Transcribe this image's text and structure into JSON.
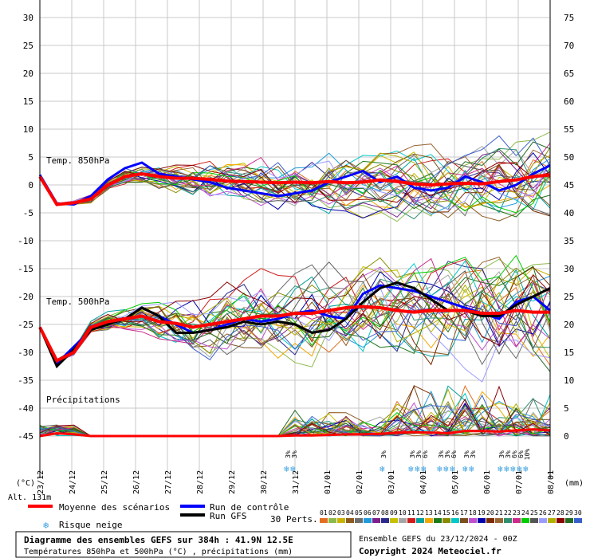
{
  "chart_data": {
    "type": "line",
    "left_axis": {
      "unit": "(°C)",
      "ylim": [
        -45,
        30
      ],
      "ticks": [
        30,
        25,
        20,
        15,
        10,
        5,
        0,
        -5,
        -10,
        -15,
        -20,
        -25,
        -30,
        -35,
        -40,
        -45
      ]
    },
    "right_axis": {
      "unit": "(mm)",
      "ylim": [
        0,
        75
      ],
      "ticks": [
        75,
        70,
        65,
        60,
        55,
        50,
        45,
        40,
        35,
        30,
        25,
        20,
        15,
        10,
        5,
        0
      ]
    },
    "x_dates": [
      "23/12",
      "24/12",
      "25/12",
      "26/12",
      "27/12",
      "28/12",
      "29/12",
      "30/12",
      "31/12",
      "01/01",
      "02/01",
      "03/01",
      "04/01",
      "05/01",
      "06/01",
      "07/01",
      "08/01"
    ],
    "x_range_hours": [
      0,
      384
    ],
    "grid": true,
    "panels": {
      "t850_label": "Temp. 850hPa",
      "t500_label": "Temp. 500hPa",
      "precip_label": "Précipitations"
    },
    "t850_mean": [
      1.5,
      -3.5,
      -3.2,
      -2.5,
      0,
      1.5,
      2.0,
      1.5,
      1.2,
      1.2,
      1.0,
      0.7,
      0.6,
      0.5,
      0.4,
      0.5,
      0.4,
      0.6,
      0.4,
      0.5,
      0.9,
      0.6,
      0.2,
      0.0,
      0.2,
      0.3,
      0.2,
      0.6,
      0.9,
      1.5,
      1.8
    ],
    "t850_control": [
      1.8,
      -3.3,
      -3.5,
      -2.0,
      1.0,
      3.0,
      4.0,
      2.0,
      1.5,
      1.0,
      0.5,
      -0.5,
      -1.0,
      -1.5,
      -2.0,
      -1.5,
      -1.0,
      0.5,
      1.5,
      2.5,
      0.5,
      1.5,
      -0.5,
      -1.0,
      -0.5,
      1.5,
      0.5,
      -1.0,
      0.0,
      2.0,
      3.5
    ],
    "t500_mean": [
      -25.5,
      -31.5,
      -30.0,
      -25.5,
      -24.5,
      -24.0,
      -23.5,
      -24.5,
      -24.8,
      -25.5,
      -25.0,
      -24.5,
      -24.0,
      -23.5,
      -23.5,
      -23.0,
      -23.0,
      -22.5,
      -22.0,
      -21.8,
      -22.0,
      -22.5,
      -22.8,
      -22.5,
      -22.5,
      -22.5,
      -23.0,
      -23.0,
      -22.5,
      -22.8,
      -22.8
    ],
    "t500_control": [
      -25.5,
      -32.0,
      -29.0,
      -26.0,
      -24.5,
      -24.0,
      -22.0,
      -23.5,
      -25.0,
      -26.5,
      -26.0,
      -25.0,
      -24.0,
      -24.5,
      -24.0,
      -23.0,
      -22.5,
      -23.5,
      -24.0,
      -19.5,
      -18.0,
      -18.5,
      -19.0,
      -20.0,
      -21.0,
      -22.0,
      -23.0,
      -24.0,
      -21.0,
      -20.0,
      -22.5
    ],
    "t500_gfs": [
      -25.5,
      -32.5,
      -29.5,
      -26.0,
      -25.0,
      -24.0,
      -22.0,
      -23.5,
      -26.5,
      -26.5,
      -26.0,
      -25.5,
      -24.5,
      -25.0,
      -24.5,
      -25.0,
      -26.5,
      -26.0,
      -24.0,
      -21.0,
      -18.5,
      -17.5,
      -18.5,
      -20.5,
      -22.5,
      -22.5,
      -23.5,
      -23.5,
      -21.5,
      -20.0,
      -18.5
    ],
    "precip_mean_mm": [
      0,
      0.5,
      0.3,
      0,
      0,
      0,
      0,
      0,
      0,
      0,
      0,
      0,
      0,
      0,
      0,
      0.1,
      0.1,
      0.2,
      0.3,
      0.3,
      0.4,
      0.6,
      0.7,
      0.6,
      0.5,
      0.9,
      0.9,
      0.8,
      1.0,
      1.2,
      1.0
    ],
    "snow_risk": [
      {
        "date_index": 8.0,
        "labels": [
          "3%",
          "3%"
        ]
      },
      {
        "date_index": 11.0,
        "labels": [
          "3%"
        ]
      },
      {
        "date_index": 11.9,
        "labels": [
          "3%",
          "3%",
          "6%"
        ]
      },
      {
        "date_index": 12.8,
        "labels": [
          "3%",
          "3%",
          "6%"
        ]
      },
      {
        "date_index": 13.6,
        "labels": [
          "3%",
          "3%"
        ]
      },
      {
        "date_index": 14.7,
        "labels": [
          "3%",
          "3%",
          "6%",
          "6%",
          "10%"
        ]
      }
    ],
    "member_colors": [
      "#e26f20",
      "#8cb94a",
      "#c9b400",
      "#8c5a1f",
      "#6d6d6d",
      "#1f9adb",
      "#7b1f8a",
      "#2a2a8a",
      "#c7c000",
      "#a5a5a5",
      "#d01c1c",
      "#00a0a0",
      "#f2a800",
      "#1b7a1b",
      "#8a8a00",
      "#00c8c8",
      "#7a4f1b",
      "#c04fd0",
      "#0000aa",
      "#7a2a00",
      "#996633",
      "#2f8f6f",
      "#cc2a8a",
      "#00cc00",
      "#555555",
      "#9c9cff",
      "#b0b000",
      "#8b0000",
      "#226b22",
      "#3a5fcd"
    ]
  },
  "labels": {
    "alt": "Alt. 131m",
    "unit_left": "(°C)",
    "unit_right": "(mm)",
    "legend_mean": "Moyenne des scénarios",
    "legend_control": "Run de contrôle",
    "legend_gfs": "Run GFS",
    "legend_snow": "Risque neige",
    "members_label": "30 Perts.",
    "member_numbers": [
      "01",
      "02",
      "03",
      "04",
      "05",
      "06",
      "07",
      "08",
      "09",
      "10",
      "11",
      "12",
      "13",
      "14",
      "15",
      "16",
      "17",
      "18",
      "19",
      "20",
      "21",
      "22",
      "23",
      "24",
      "25",
      "26",
      "27",
      "28",
      "29",
      "30"
    ],
    "title_main": "Diagramme des ensembles GEFS sur 384h : 41.9N 12.5E",
    "title_sub": "Températures 850hPa et 500hPa (°C) , précipitations (mm)",
    "ensemble_run": "Ensemble GEFS du 23/12/2024 - 00Z",
    "copyright": "Copyright 2024 Meteociel.fr"
  },
  "colors": {
    "mean": "#ff0000",
    "control": "#0000ff",
    "gfs": "#000000",
    "grid": "#c8c8c8",
    "snow": "#3aa0e0"
  }
}
